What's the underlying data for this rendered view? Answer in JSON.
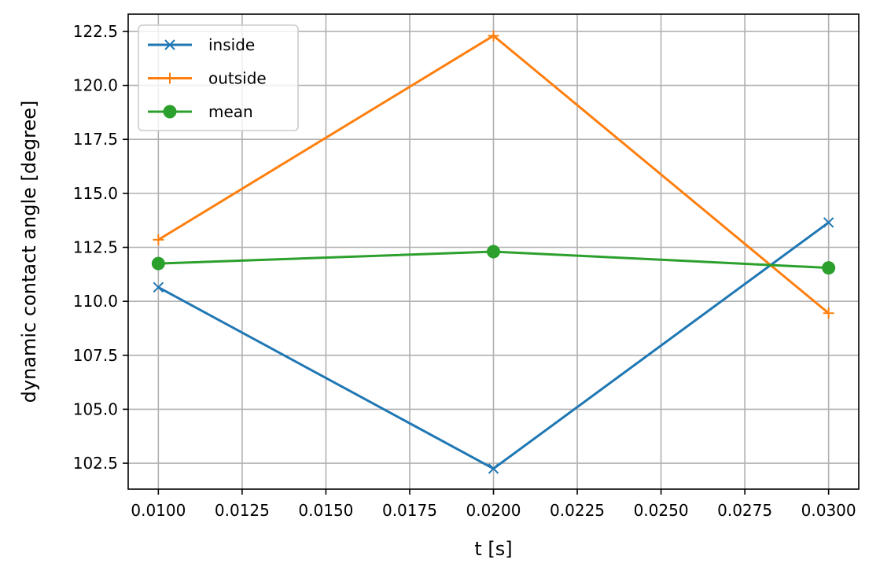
{
  "chart_data": {
    "type": "line",
    "xlabel": "t [s]",
    "ylabel": "dynamic contact angle [degree]",
    "xlim": [
      0.0091,
      0.0309
    ],
    "ylim": [
      101.3,
      123.3
    ],
    "x_ticks": [
      "0.0100",
      "0.0125",
      "0.0150",
      "0.0175",
      "0.0200",
      "0.0225",
      "0.0250",
      "0.0275",
      "0.0300"
    ],
    "y_ticks": [
      "102.5",
      "105.0",
      "107.5",
      "110.0",
      "112.5",
      "115.0",
      "117.5",
      "120.0",
      "122.5"
    ],
    "grid": true,
    "legend_position": "top-left",
    "x": [
      0.01,
      0.02,
      0.03
    ],
    "series": [
      {
        "name": "inside",
        "values": [
          110.65,
          102.25,
          113.65
        ],
        "color": "#1f77b4",
        "marker": "x"
      },
      {
        "name": "outside",
        "values": [
          112.85,
          122.3,
          109.45
        ],
        "color": "#ff7f0e",
        "marker": "plus"
      },
      {
        "name": "mean",
        "values": [
          111.75,
          112.3,
          111.55
        ],
        "color": "#2ca02c",
        "marker": "circle"
      }
    ]
  }
}
